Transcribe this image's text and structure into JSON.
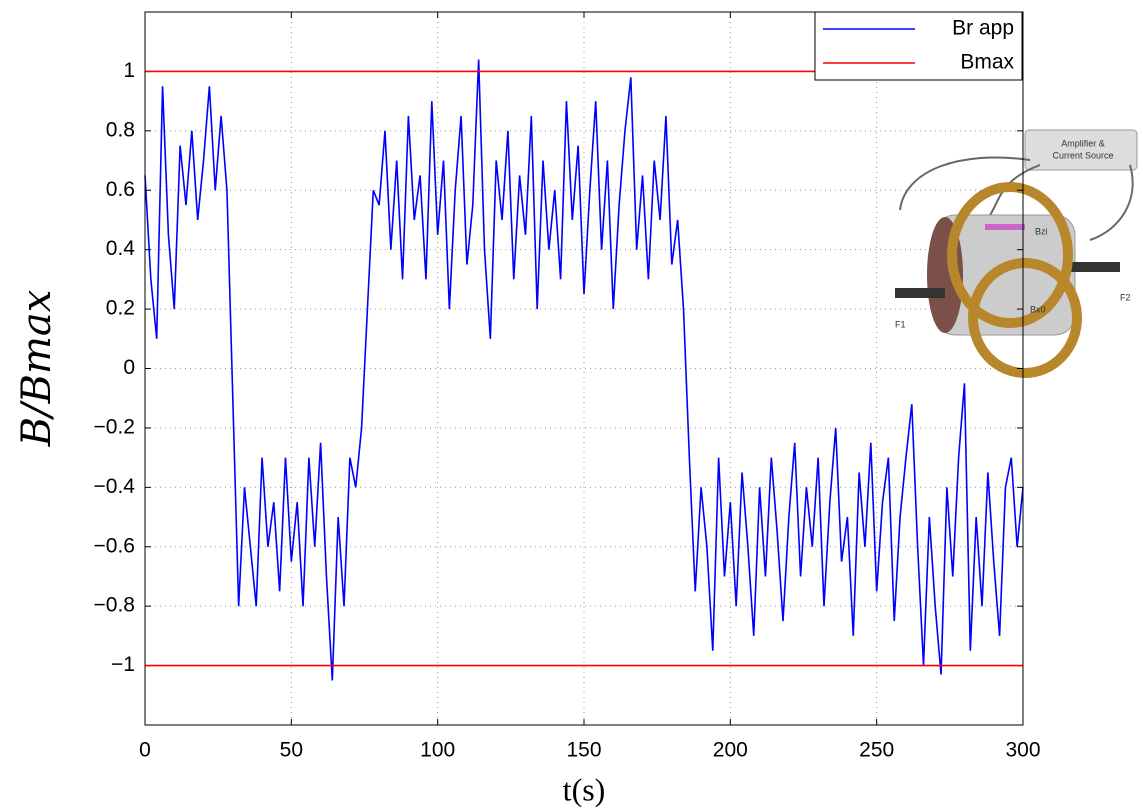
{
  "chart_data": {
    "type": "line",
    "x_label": "t(s)",
    "y_label": "B/Bmax",
    "xlim": [
      0,
      300
    ],
    "xticks": [
      0,
      50,
      100,
      150,
      200,
      250,
      300
    ],
    "ylim": [
      -1.2,
      1.2
    ],
    "yticks": [
      {
        "value": -1,
        "label": "−1"
      },
      {
        "value": -0.8,
        "label": "−0.8"
      },
      {
        "value": -0.6,
        "label": "−0.6"
      },
      {
        "value": -0.4,
        "label": "−0.4"
      },
      {
        "value": -0.2,
        "label": "−0.2"
      },
      0,
      0.2,
      0.4,
      0.6,
      0.8,
      1
    ],
    "grid": true,
    "legend": "upper right",
    "x": [
      0,
      2,
      4,
      6,
      8,
      10,
      12,
      14,
      16,
      18,
      20,
      22,
      24,
      26,
      28,
      30,
      32,
      34,
      36,
      38,
      40,
      42,
      44,
      46,
      48,
      50,
      52,
      54,
      56,
      58,
      60,
      62,
      64,
      66,
      68,
      70,
      72,
      74,
      76,
      78,
      80,
      82,
      84,
      86,
      88,
      90,
      92,
      94,
      96,
      98,
      100,
      102,
      104,
      106,
      108,
      110,
      112,
      114,
      116,
      118,
      120,
      122,
      124,
      126,
      128,
      130,
      132,
      134,
      136,
      138,
      140,
      142,
      144,
      146,
      148,
      150,
      152,
      154,
      156,
      158,
      160,
      162,
      164,
      166,
      168,
      170,
      172,
      174,
      176,
      178,
      180,
      182,
      184,
      186,
      188,
      190,
      192,
      194,
      196,
      198,
      200,
      202,
      204,
      206,
      208,
      210,
      212,
      214,
      216,
      218,
      220,
      222,
      224,
      226,
      228,
      230,
      232,
      234,
      236,
      238,
      240,
      242,
      244,
      246,
      248,
      250,
      252,
      254,
      256,
      258,
      260,
      262,
      264,
      266,
      268,
      270,
      272,
      274,
      276,
      278,
      280,
      282,
      284,
      286,
      288,
      290,
      292,
      294,
      296,
      298,
      300
    ],
    "series": [
      {
        "name": "Br app",
        "color": "#0000ff",
        "values": [
          0.65,
          0.3,
          0.1,
          0.95,
          0.45,
          0.2,
          0.75,
          0.55,
          0.8,
          0.5,
          0.7,
          0.95,
          0.6,
          0.85,
          0.6,
          -0.1,
          -0.8,
          -0.4,
          -0.6,
          -0.8,
          -0.3,
          -0.6,
          -0.45,
          -0.75,
          -0.3,
          -0.65,
          -0.45,
          -0.8,
          -0.3,
          -0.6,
          -0.25,
          -0.7,
          -1.05,
          -0.5,
          -0.8,
          -0.3,
          -0.4,
          -0.2,
          0.2,
          0.6,
          0.55,
          0.8,
          0.4,
          0.7,
          0.3,
          0.85,
          0.5,
          0.65,
          0.3,
          0.9,
          0.45,
          0.7,
          0.2,
          0.6,
          0.85,
          0.35,
          0.55,
          1.04,
          0.4,
          0.1,
          0.7,
          0.5,
          0.8,
          0.3,
          0.65,
          0.45,
          0.85,
          0.2,
          0.7,
          0.4,
          0.6,
          0.3,
          0.9,
          0.5,
          0.75,
          0.25,
          0.6,
          0.9,
          0.4,
          0.7,
          0.2,
          0.55,
          0.8,
          0.98,
          0.4,
          0.65,
          0.3,
          0.7,
          0.5,
          0.85,
          0.35,
          0.5,
          0.2,
          -0.3,
          -0.75,
          -0.4,
          -0.6,
          -0.95,
          -0.3,
          -0.7,
          -0.45,
          -0.8,
          -0.35,
          -0.6,
          -0.9,
          -0.4,
          -0.7,
          -0.3,
          -0.55,
          -0.85,
          -0.5,
          -0.25,
          -0.7,
          -0.4,
          -0.6,
          -0.3,
          -0.8,
          -0.45,
          -0.2,
          -0.65,
          -0.5,
          -0.9,
          -0.35,
          -0.6,
          -0.25,
          -0.75,
          -0.45,
          -0.3,
          -0.85,
          -0.5,
          -0.3,
          -0.12,
          -0.6,
          -1.0,
          -0.5,
          -0.8,
          -1.03,
          -0.4,
          -0.7,
          -0.3,
          -0.05,
          -0.95,
          -0.5,
          -0.8,
          -0.35,
          -0.65,
          -0.9,
          -0.4,
          -0.3,
          -0.6,
          -0.4
        ]
      },
      {
        "name": "Bmax",
        "color": "#ff0000",
        "levels": [
          1,
          -1
        ]
      }
    ],
    "inset_labels": [
      "Amplifier &",
      "Current Source",
      "Bzi",
      "Bx0",
      "F1",
      "F2"
    ]
  }
}
